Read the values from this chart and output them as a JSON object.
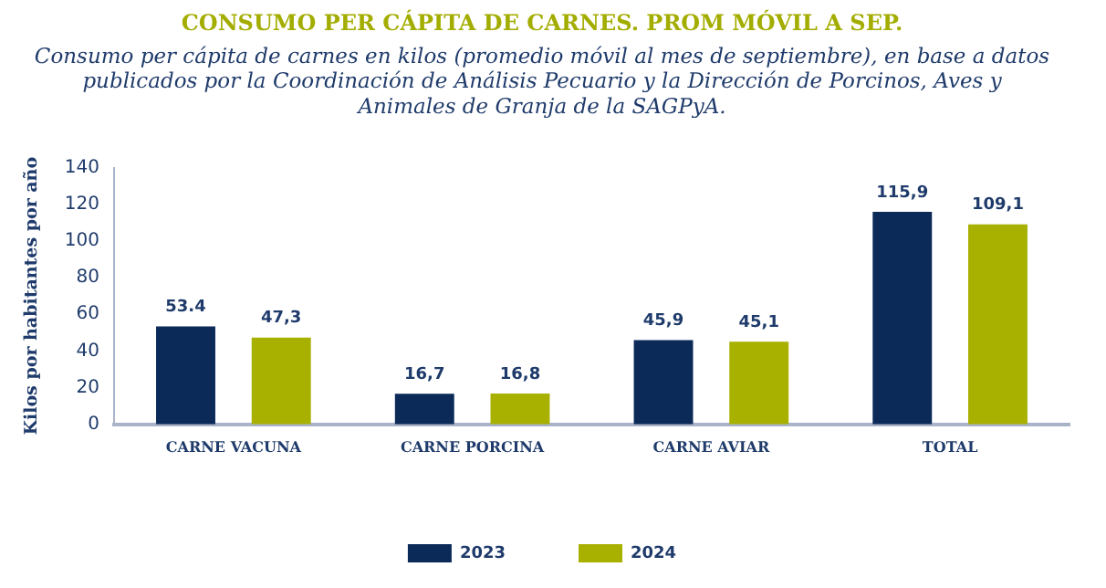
{
  "chart_data": {
    "type": "bar",
    "title": "CONSUMO PER CÁPITA DE CARNES. PROM MÓVIL A SEP.",
    "subtitle": "Consumo per cápita de carnes en kilos (promedio móvil al mes de septiembre), en base a datos publicados por la Coordinación de Análisis Pecuario y la Dirección de Porcinos, Aves y Animales de Granja de la SAGPyA.",
    "ylabel": "Kilos por habitantes por año",
    "categories": [
      "CARNE VACUNA",
      "CARNE PORCINA",
      "CARNE AVIAR",
      "TOTAL"
    ],
    "series": [
      {
        "name": "2023",
        "color": "#0b2a58",
        "values": [
          53.4,
          16.7,
          45.9,
          115.9
        ],
        "value_labels": [
          "53.4",
          "16,7",
          "45,9",
          "115,9"
        ]
      },
      {
        "name": "2024",
        "color": "#a8b000",
        "values": [
          47.3,
          16.8,
          45.1,
          109.1
        ],
        "value_labels": [
          "47,3",
          "16,8",
          "45,1",
          "109,1"
        ]
      }
    ],
    "ylim": [
      0,
      140
    ],
    "yticks": [
      0,
      20,
      40,
      60,
      80,
      100,
      120,
      140
    ],
    "grid": false,
    "legend": "bottom"
  }
}
